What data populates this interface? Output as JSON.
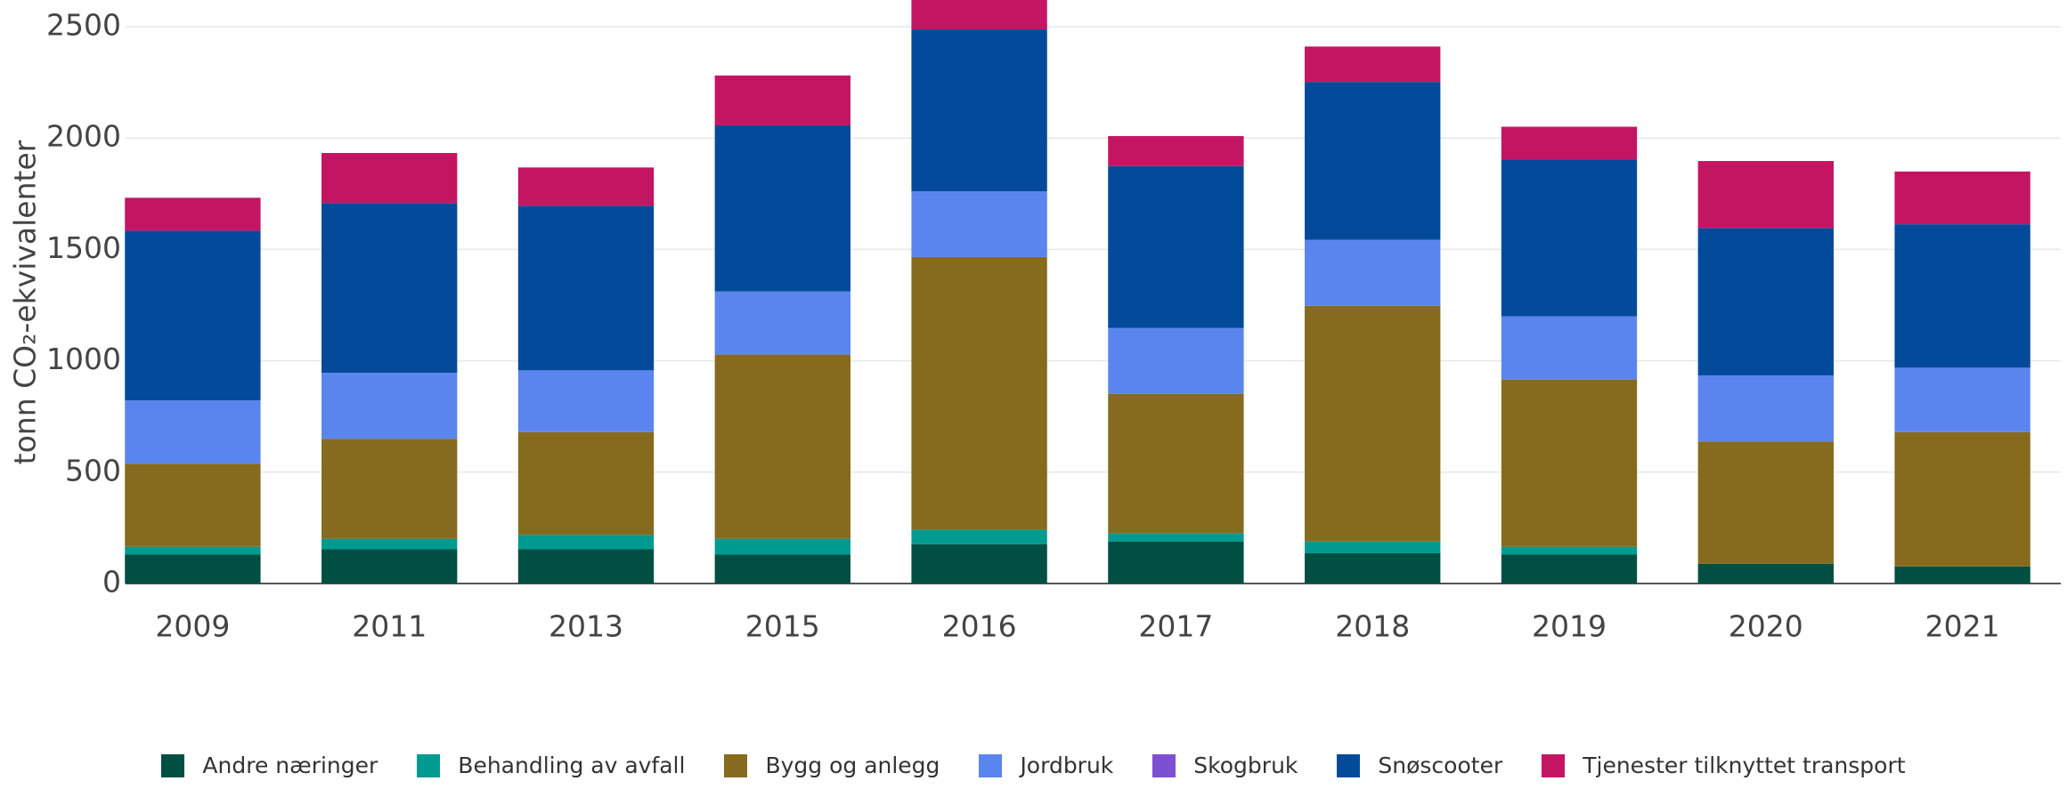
{
  "chart_data": {
    "type": "stacked_bar",
    "y_label": "tonn CO₂-ekvivalenter",
    "categories": [
      "2009",
      "2011",
      "2013",
      "2015",
      "2016",
      "2017",
      "2018",
      "2019",
      "2020",
      "2021"
    ],
    "series": [
      {
        "name": "Andre næringer",
        "color": "#004f43",
        "values": [
          130,
          154,
          154,
          130,
          177,
          189,
          136,
          130,
          89,
          77
        ]
      },
      {
        "name": "Behandling av avfall",
        "color": "#009a90",
        "values": [
          35,
          47,
          65,
          71,
          65,
          36,
          53,
          35,
          0,
          0
        ]
      },
      {
        "name": "Bygg og anlegg",
        "color": "#866b1e",
        "values": [
          373,
          449,
          461,
          827,
          1224,
          626,
          1058,
          751,
          549,
          603
        ]
      },
      {
        "name": "Jordbruk",
        "color": "#5b85ee",
        "values": [
          284,
          296,
          277,
          284,
          295,
          296,
          296,
          284,
          296,
          289
        ]
      },
      {
        "name": "Skogbruk",
        "color": "#7d4fd3",
        "values": [
          0,
          0,
          0,
          0,
          0,
          0,
          0,
          0,
          0,
          0
        ]
      },
      {
        "name": "Snøscooter",
        "color": "#034b9a",
        "values": [
          762,
          762,
          739,
          745,
          727,
          727,
          709,
          703,
          662,
          644
        ]
      },
      {
        "name": "Tjenester tilknyttet transport",
        "color": "#c41563",
        "values": [
          148,
          225,
          172,
          224,
          150,
          135,
          159,
          148,
          301,
          237
        ]
      }
    ],
    "ylim": [
      0,
      2620
    ],
    "yticks": [
      0,
      500,
      1000,
      1500,
      2000,
      2500
    ],
    "grid": true
  }
}
